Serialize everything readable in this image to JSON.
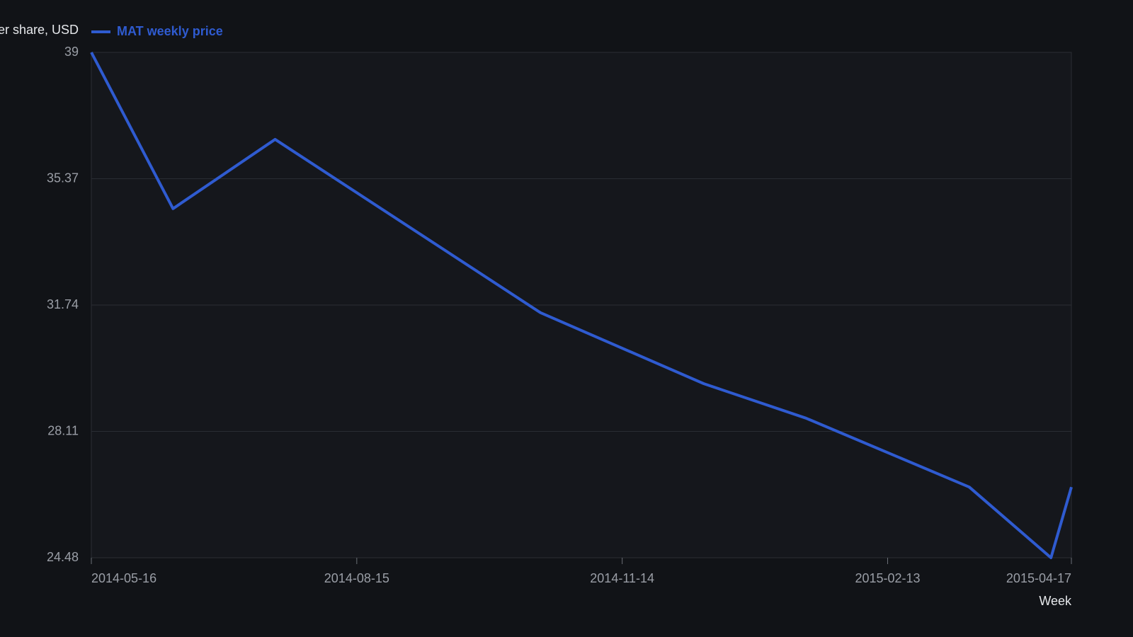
{
  "chart_data": {
    "type": "line",
    "y_label": "Price per share, USD",
    "x_label": "Week",
    "x": [
      "2014-05-16",
      "2014-06-13",
      "2014-07-18",
      "2014-10-17",
      "2014-12-12",
      "2015-01-16",
      "2015-03-13",
      "2015-04-10",
      "2015-04-17"
    ],
    "series": [
      {
        "name": "MAT weekly price",
        "color": "#2f5bd0",
        "values": [
          39,
          34.51,
          36.5,
          31.52,
          29.48,
          28.49,
          26.51,
          24.48,
          26.51
        ]
      }
    ],
    "xlim": [
      "2014-05-16",
      "2015-04-17"
    ],
    "xticks": [
      "2014-05-16",
      "2014-08-15",
      "2014-11-14",
      "2015-02-13",
      "2015-04-17"
    ],
    "ylim": [
      24.48,
      39
    ],
    "yticks": [
      24.48,
      28.11,
      31.74,
      35.37,
      39
    ],
    "grid": true
  }
}
